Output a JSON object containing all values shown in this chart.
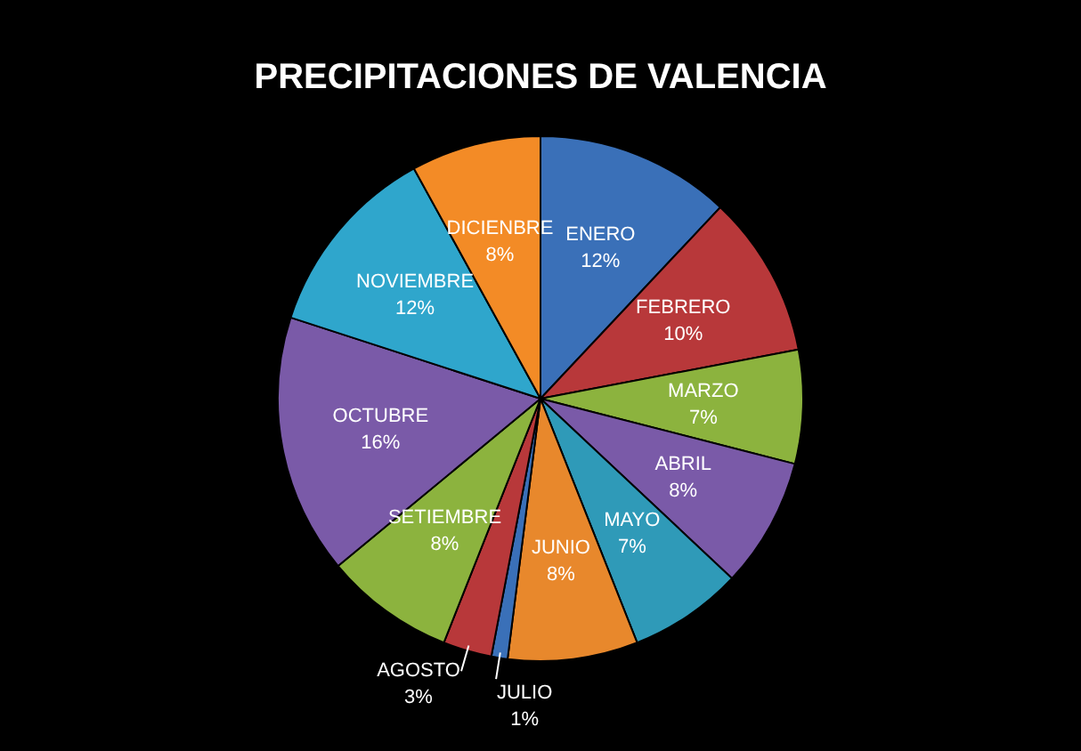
{
  "chart_data": {
    "type": "pie",
    "title": "PRECIPITACIONES DE VALENCIA",
    "categories": [
      "ENERO",
      "FEBRERO",
      "MARZO",
      "ABRIL",
      "MAYO",
      "JUNIO",
      "JULIO",
      "AGOSTO",
      "SETIEMBRE",
      "OCTUBRE",
      "NOVIEMBRE",
      "DICIENBRE"
    ],
    "values": [
      12,
      10,
      7,
      8,
      7,
      8,
      1,
      3,
      8,
      16,
      12,
      8
    ],
    "value_labels": [
      "12%",
      "10%",
      "7%",
      "8%",
      "7%",
      "8%",
      "1%",
      "3%",
      "8%",
      "16%",
      "12%",
      "8%"
    ],
    "colors": [
      "#3a70b8",
      "#b8383a",
      "#8cb33e",
      "#7a5aa8",
      "#2f9ab8",
      "#e8882c",
      "#3a70b8",
      "#b8383a",
      "#8cb33e",
      "#7a5aa8",
      "#2fa6cc",
      "#f38b26"
    ],
    "legend": false
  }
}
